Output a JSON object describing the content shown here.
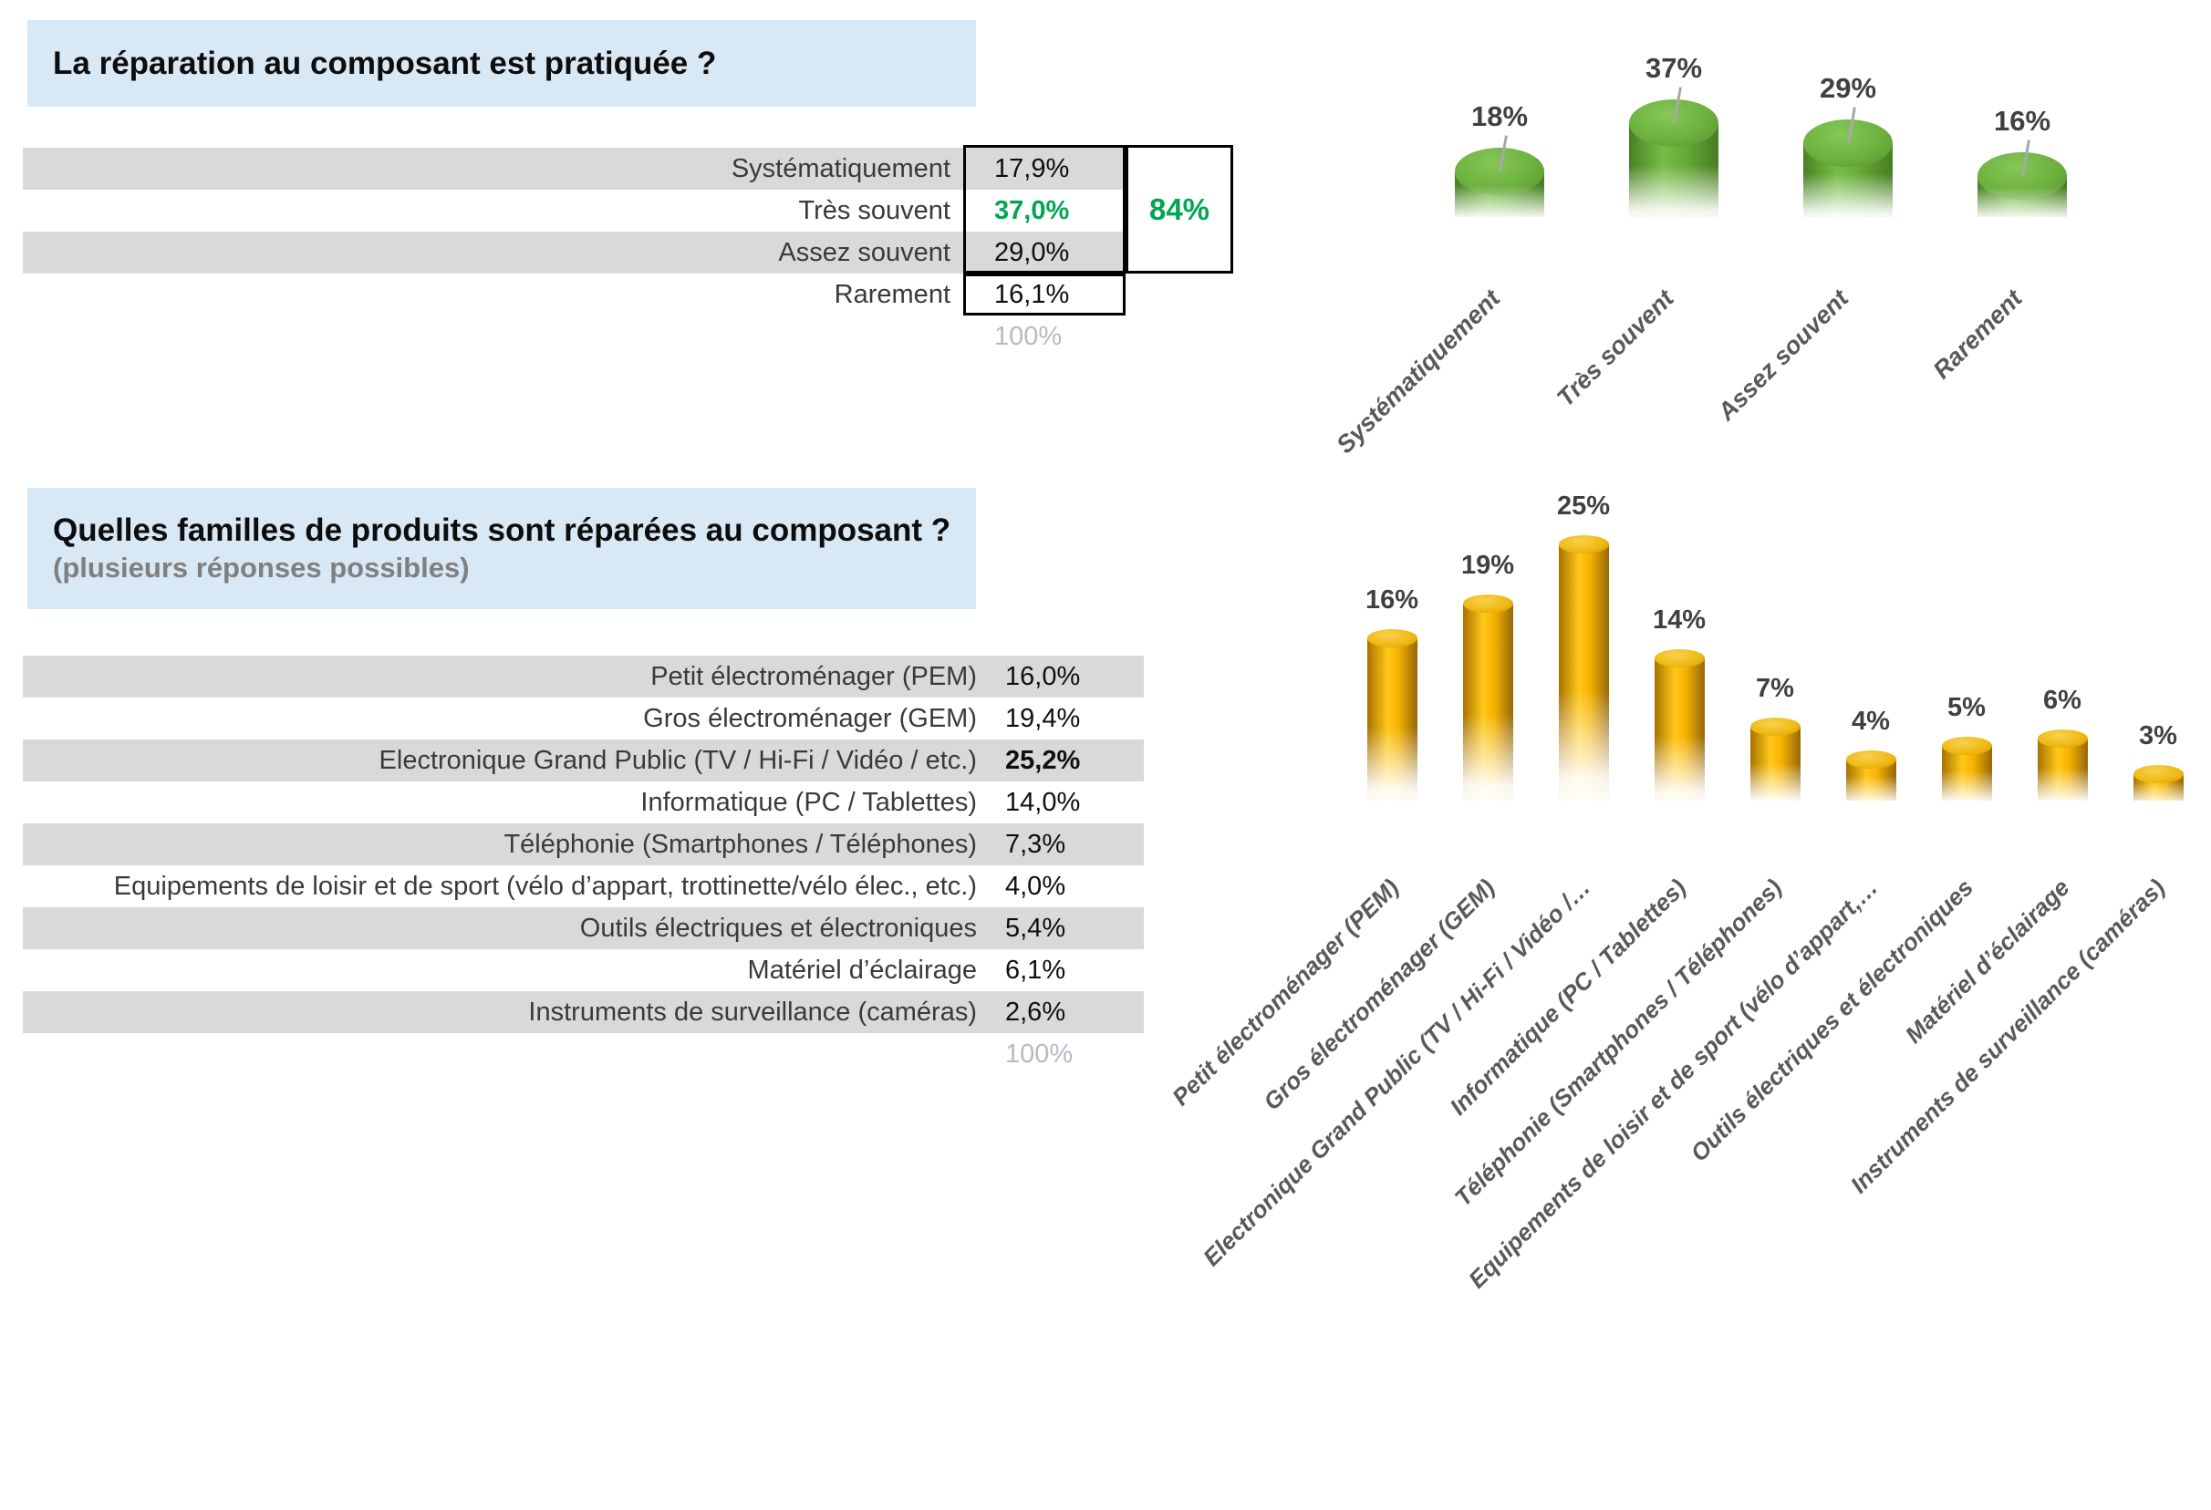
{
  "section1": {
    "title": "La réparation au composant est pratiquée ?",
    "rows": [
      {
        "label": "Systématiquement",
        "value": "17,9%"
      },
      {
        "label": "Très souvent",
        "value": "37,0%",
        "highlight": true
      },
      {
        "label": "Assez souvent",
        "value": "29,0%"
      },
      {
        "label": "Rarement",
        "value": "16,1%"
      }
    ],
    "total": "100%",
    "aggregate": "84%"
  },
  "section2": {
    "title": "Quelles familles de produits sont réparées au composant ?",
    "subtitle": "(plusieurs réponses possibles)",
    "rows": [
      {
        "label": "Petit électroménager (PEM)",
        "value": "16,0%"
      },
      {
        "label": "Gros électroménager (GEM)",
        "value": "19,4%"
      },
      {
        "label": "Electronique Grand Public (TV / Hi-Fi / Vidéo / etc.)",
        "value": "25,2%",
        "bold": true
      },
      {
        "label": "Informatique (PC / Tablettes)",
        "value": "14,0%"
      },
      {
        "label": "Téléphonie (Smartphones / Téléphones)",
        "value": "7,3%"
      },
      {
        "label": "Equipements de loisir et de sport (vélo d’appart, trottinette/vélo élec., etc.)",
        "value": "4,0%"
      },
      {
        "label": "Outils électriques et électroniques",
        "value": "5,4%"
      },
      {
        "label": "Matériel d’éclairage",
        "value": "6,1%"
      },
      {
        "label": "Instruments de surveillance (caméras)",
        "value": "2,6%"
      }
    ],
    "total": "100%"
  },
  "chart_data": [
    {
      "type": "bar",
      "style": "3d-cylinder-fade",
      "title": "La réparation au composant est pratiquée ?",
      "categories": [
        "Systématiquement",
        "Très souvent",
        "Assez souvent",
        "Rarement"
      ],
      "values": [
        17.9,
        37.0,
        29.0,
        16.1
      ],
      "data_labels": [
        "18%",
        "37%",
        "29%",
        "16%"
      ],
      "bar_color": "#69ad3a",
      "xlabel": "",
      "ylabel": "",
      "ylim": [
        0,
        40
      ],
      "grid": false,
      "legend": "none",
      "axis_label_rotation": -45
    },
    {
      "type": "bar",
      "style": "3d-cylinder-fade",
      "title": "Quelles familles de produits sont réparées au composant ?",
      "categories": [
        "Petit électroménager (PEM)",
        "Gros électroménager (GEM)",
        "Electronique Grand Public (TV / Hi-Fi / Vidéo / etc.)",
        "Informatique (PC / Tablettes)",
        "Téléphonie (Smartphones / Téléphones)",
        "Equipements de loisir et de sport (vélo d’appart, trottinette/vélo élec., etc.)",
        "Outils électriques et électroniques",
        "Matériel d’éclairage",
        "Instruments de surveillance (caméras)"
      ],
      "axis_tick_labels": [
        "Petit électroménager (PEM)",
        "Gros électroménager (GEM)",
        "Electronique Grand Public (TV / Hi-Fi / Vidéo /…",
        "Informatique (PC / Tablettes)",
        "Téléphonie (Smartphones / Téléphones)",
        "Equipements de loisir et de sport (vélo d’appart,…",
        "Outils électriques et électroniques",
        "Matériel d’éclairage",
        "Instruments de surveillance (caméras)"
      ],
      "values": [
        16.0,
        19.4,
        25.2,
        14.0,
        7.3,
        4.0,
        5.4,
        6.1,
        2.6
      ],
      "data_labels": [
        "16%",
        "19%",
        "25%",
        "14%",
        "7%",
        "4%",
        "5%",
        "6%",
        "3%"
      ],
      "bar_color": "#f2b600",
      "xlabel": "",
      "ylabel": "",
      "ylim": [
        0,
        28
      ],
      "grid": false,
      "legend": "none",
      "axis_label_rotation": -45
    }
  ],
  "colors": {
    "header_bg": "#d9e8f5",
    "row_band": "#d9d9d9",
    "accent_green": "#00a651",
    "total_muted": "#b5bac3",
    "bar_green": "#69ad3a",
    "bar_gold": "#f2b600",
    "value_label": "#404040",
    "axis_label": "#595959"
  }
}
